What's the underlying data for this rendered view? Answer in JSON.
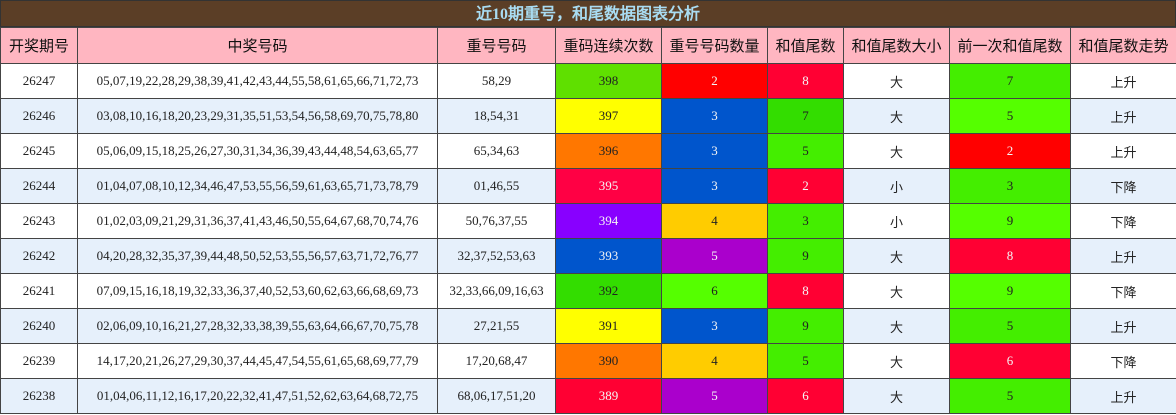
{
  "header": {
    "title": "近10期重号，和尾数据图表分析"
  },
  "columns": [
    "开奖期号",
    "中奖号码",
    "重号号码",
    "重码连续次数",
    "重号号码数量",
    "和值尾数",
    "和值尾数大小",
    "前一次和值尾数",
    "和值尾数走势"
  ],
  "rows": [
    {
      "cells": [
        "26247",
        "05,07,19,22,28,29,38,39,41,42,43,44,55,58,61,65,66,71,72,73",
        "58,29",
        "398",
        "2",
        "8",
        "大",
        "7",
        "上升"
      ],
      "fills": [
        null,
        null,
        null,
        "#5fe000",
        "#ff0000",
        "#ff0033",
        null,
        "#44ee00",
        null
      ]
    },
    {
      "cells": [
        "26246",
        "03,08,10,16,18,20,23,29,31,35,51,53,54,56,58,69,70,75,78,80",
        "18,54,31",
        "397",
        "3",
        "7",
        "大",
        "5",
        "上升"
      ],
      "fills": [
        null,
        null,
        null,
        "#ffff00",
        "#0055cc",
        "#33dd00",
        null,
        "#55ff00",
        null
      ]
    },
    {
      "cells": [
        "26245",
        "05,06,09,15,18,25,26,27,30,31,34,36,39,43,44,48,54,63,65,77",
        "65,34,63",
        "396",
        "3",
        "5",
        "大",
        "2",
        "上升"
      ],
      "fills": [
        null,
        null,
        null,
        "#ff7700",
        "#0055cc",
        "#44ee00",
        null,
        "#ff0000",
        null
      ]
    },
    {
      "cells": [
        "26244",
        "01,04,07,08,10,12,34,46,47,53,55,56,59,61,63,65,71,73,78,79",
        "01,46,55",
        "395",
        "3",
        "2",
        "小",
        "3",
        "下降"
      ],
      "fills": [
        null,
        null,
        null,
        "#ff0044",
        "#0055cc",
        "#ff0033",
        null,
        "#44ee00",
        null
      ]
    },
    {
      "cells": [
        "26243",
        "01,02,03,09,21,29,31,36,37,41,43,46,50,55,64,67,68,70,74,76",
        "50,76,37,55",
        "394",
        "4",
        "3",
        "小",
        "9",
        "下降"
      ],
      "fills": [
        null,
        null,
        null,
        "#8800ff",
        "#ffcc00",
        "#44ee00",
        null,
        "#55ff00",
        null
      ]
    },
    {
      "cells": [
        "26242",
        "04,20,28,32,35,37,39,44,48,50,52,53,55,56,57,63,71,72,76,77",
        "32,37,52,53,63",
        "393",
        "5",
        "9",
        "大",
        "8",
        "上升"
      ],
      "fills": [
        null,
        null,
        null,
        "#0055cc",
        "#aa00cc",
        "#44ee00",
        null,
        "#ff0033",
        null
      ]
    },
    {
      "cells": [
        "26241",
        "07,09,15,16,18,19,32,33,36,37,40,52,53,60,62,63,66,68,69,73",
        "32,33,66,09,16,63",
        "392",
        "6",
        "8",
        "大",
        "9",
        "下降"
      ],
      "fills": [
        null,
        null,
        null,
        "#33dd00",
        "#55ff00",
        "#ff0033",
        null,
        "#55ff00",
        null
      ]
    },
    {
      "cells": [
        "26240",
        "02,06,09,10,16,21,27,28,32,33,38,39,55,63,64,66,67,70,75,78",
        "27,21,55",
        "391",
        "3",
        "9",
        "大",
        "5",
        "上升"
      ],
      "fills": [
        null,
        null,
        null,
        "#ffff00",
        "#0055cc",
        "#44ee00",
        null,
        "#44ee00",
        null
      ]
    },
    {
      "cells": [
        "26239",
        "14,17,20,21,26,27,29,30,37,44,45,47,54,55,61,65,68,69,77,79",
        "17,20,68,47",
        "390",
        "4",
        "5",
        "大",
        "6",
        "下降"
      ],
      "fills": [
        null,
        null,
        null,
        "#ff7700",
        "#ffcc00",
        "#44ee00",
        null,
        "#ff0033",
        null
      ]
    },
    {
      "cells": [
        "26238",
        "01,04,06,11,12,16,17,20,22,32,41,47,51,52,62,63,64,68,72,75",
        "68,06,17,51,20",
        "389",
        "5",
        "6",
        "大",
        "5",
        "上升"
      ],
      "fills": [
        null,
        null,
        null,
        "#ff0033",
        "#aa00cc",
        "#ff0033",
        null,
        "#44ee00",
        null
      ]
    }
  ]
}
